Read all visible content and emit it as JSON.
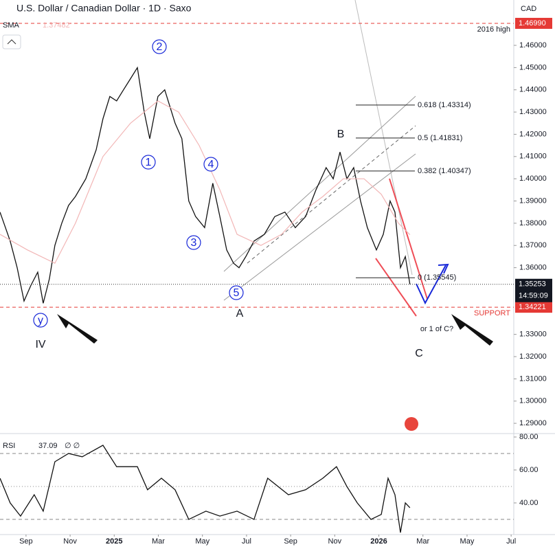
{
  "header": {
    "title": "U.S. Dollar / Canadian Dollar · 1D · Saxo",
    "currency": "CAD"
  },
  "chart_data": [
    {
      "type": "line",
      "xlim": [
        -1.18,
        22.12
      ],
      "ylim": [
        1.2857,
        1.4804
      ],
      "xticks": [
        {
          "value": 0,
          "label": "Sep"
        },
        {
          "value": 2,
          "label": "Nov"
        },
        {
          "value": 4,
          "label": "2025"
        },
        {
          "value": 6,
          "label": "Mar"
        },
        {
          "value": 8,
          "label": "May"
        },
        {
          "value": 10,
          "label": "Jul"
        },
        {
          "value": 12,
          "label": "Sep"
        },
        {
          "value": 14,
          "label": "Nov"
        },
        {
          "value": 16,
          "label": "2026"
        },
        {
          "value": 18,
          "label": "Mar"
        },
        {
          "value": 20,
          "label": "May"
        },
        {
          "value": 22,
          "label": "Jul"
        }
      ],
      "yticks": [
        {
          "value": 1.46,
          "label": "1.46000"
        },
        {
          "value": 1.45,
          "label": "1.45000"
        },
        {
          "value": 1.44,
          "label": "1.44000"
        },
        {
          "value": 1.43,
          "label": "1.43000"
        },
        {
          "value": 1.42,
          "label": "1.42000"
        },
        {
          "value": 1.41,
          "label": "1.41000"
        },
        {
          "value": 1.4,
          "label": "1.40000"
        },
        {
          "value": 1.39,
          "label": "1.39000"
        },
        {
          "value": 1.38,
          "label": "1.38000"
        },
        {
          "value": 1.37,
          "label": "1.37000"
        },
        {
          "value": 1.36,
          "label": "1.36000"
        },
        {
          "value": 1.33,
          "label": "1.33000"
        },
        {
          "value": 1.32,
          "label": "1.32000"
        },
        {
          "value": 1.31,
          "label": "1.31000"
        },
        {
          "value": 1.3,
          "label": "1.30000"
        },
        {
          "value": 1.29,
          "label": "1.29000"
        }
      ],
      "series": [
        {
          "color": "#111111",
          "x": [
            -1.18,
            -0.72,
            -0.4,
            -0.09,
            0.22,
            0.53,
            0.78,
            1.06,
            1.31,
            1.62,
            1.93,
            2.24,
            2.71,
            3.18,
            3.49,
            3.8,
            4.11,
            4.42,
            4.74,
            5.05,
            5.36,
            5.61,
            5.98,
            6.29,
            6.76,
            7.07,
            7.38,
            7.69,
            8.1,
            8.47,
            8.79,
            9.1,
            9.41,
            9.66,
            9.97,
            10.34,
            10.81,
            11.28,
            11.74,
            12.21,
            12.68,
            13.15,
            13.61,
            13.93,
            14.24,
            14.55,
            14.86,
            15.17,
            15.48,
            15.89,
            16.2,
            16.51,
            16.73,
            16.98,
            17.2,
            17.41
          ],
          "values": [
            1.385,
            1.372,
            1.36,
            1.345,
            1.352,
            1.358,
            1.344,
            1.355,
            1.37,
            1.38,
            1.388,
            1.392,
            1.4,
            1.413,
            1.427,
            1.437,
            1.435,
            1.44,
            1.445,
            1.45,
            1.43,
            1.418,
            1.437,
            1.44,
            1.425,
            1.418,
            1.39,
            1.383,
            1.378,
            1.398,
            1.383,
            1.368,
            1.362,
            1.36,
            1.365,
            1.372,
            1.375,
            1.383,
            1.385,
            1.378,
            1.383,
            1.395,
            1.405,
            1.4,
            1.412,
            1.4,
            1.405,
            1.39,
            1.378,
            1.368,
            1.375,
            1.39,
            1.385,
            1.36,
            1.365,
            1.35253
          ]
        },
        {
          "name": "SMA",
          "color": "#f2b6b6",
          "value_label": "1.37482",
          "x": [
            -1.18,
            0.06,
            1.31,
            2.24,
            3.49,
            4.74,
            5.98,
            6.92,
            7.85,
            8.79,
            9.57,
            10.65,
            11.59,
            12.52,
            13.46,
            14.39,
            15.33,
            16.11,
            16.89,
            17.41
          ],
          "values": [
            1.375,
            1.368,
            1.362,
            1.38,
            1.41,
            1.425,
            1.435,
            1.43,
            1.415,
            1.395,
            1.375,
            1.37,
            1.375,
            1.385,
            1.392,
            1.4,
            1.4,
            1.393,
            1.38,
            1.37482
          ]
        }
      ],
      "last_price": {
        "value": 1.35253,
        "label": "1.35253",
        "countdown": "14:59:09"
      },
      "levels": [
        {
          "value": 1.4699,
          "label": "1.46990",
          "note": "2016 high"
        },
        {
          "value": 1.34221,
          "label": "1.34221",
          "note": "SUPPORT"
        }
      ],
      "fib_levels": [
        {
          "value": 1.43314,
          "label": "0.618 (1.43314)"
        },
        {
          "value": 1.41831,
          "label": "0.5 (1.41831)"
        },
        {
          "value": 1.40347,
          "label": "0.382 (1.40347)"
        },
        {
          "value": 1.35545,
          "label": "0 (1.35545)"
        }
      ],
      "wave_labels": [
        "2",
        "1",
        "4",
        "3",
        "5",
        "y"
      ],
      "annotations": [
        "B",
        "A",
        "C",
        "IV",
        "or 1 of C?"
      ]
    },
    {
      "type": "line",
      "title": "RSI",
      "value_label": "37.09",
      "extra": "∅ ∅",
      "xlim": [
        -1.18,
        22.12
      ],
      "ylim": [
        20.8,
        81.25
      ],
      "yticks": [
        {
          "value": 80,
          "label": "80.00"
        },
        {
          "value": 60,
          "label": "60.00"
        },
        {
          "value": 40,
          "label": "40.00"
        }
      ],
      "levels": [
        70,
        50,
        30
      ],
      "series": [
        {
          "color": "#111111",
          "x": [
            -1.18,
            -0.72,
            -0.25,
            0.37,
            0.78,
            1.31,
            1.93,
            2.55,
            3.49,
            4.11,
            5.05,
            5.51,
            6.14,
            6.76,
            7.38,
            8.16,
            8.79,
            9.57,
            10.34,
            10.96,
            11.9,
            12.68,
            13.46,
            14.08,
            14.55,
            15.02,
            15.64,
            16.11,
            16.42,
            16.73,
            16.98,
            17.2,
            17.41
          ],
          "values": [
            55,
            40,
            32,
            45,
            35,
            65,
            70,
            68,
            75,
            62,
            62,
            48,
            55,
            48,
            30,
            35,
            32,
            35,
            30,
            55,
            45,
            48,
            55,
            62,
            50,
            40,
            30,
            33,
            55,
            45,
            22,
            40,
            37.09
          ]
        }
      ]
    }
  ]
}
